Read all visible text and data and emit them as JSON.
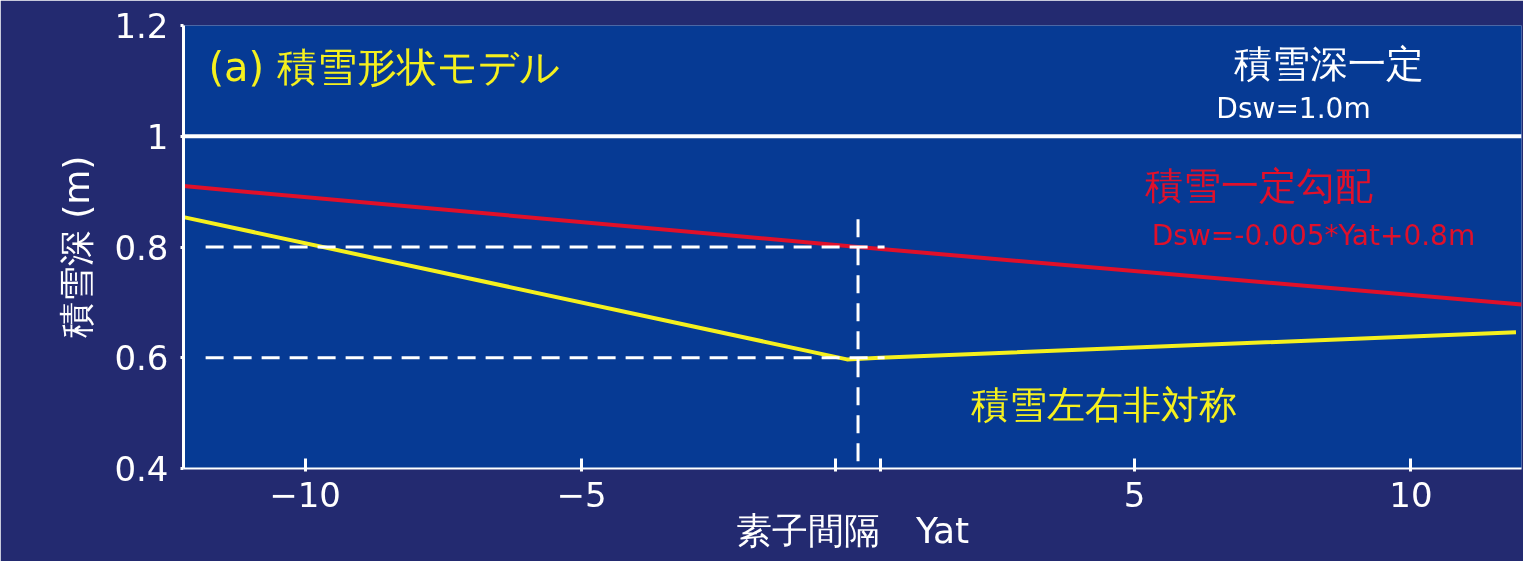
{
  "chart_data": {
    "type": "line",
    "title": "(a)  積雪形状モデル",
    "xlabel": "素子間隔　Yat",
    "ylabel": "積雪深 (m)",
    "xlim": [
      -12.2,
      12.0
    ],
    "xticks": [
      -10,
      -5,
      {
        "value": -0.4,
        "label": null
      },
      {
        "value": 0.4,
        "label": null
      },
      5,
      10
    ],
    "ylim": [
      0.4,
      1.2
    ],
    "yticks": [
      0.4,
      0.6,
      0.8,
      1.0,
      1.2
    ],
    "grid": false,
    "line_style": "solid",
    "series": [
      {
        "color": "#e0102a",
        "x": [
          -12.2,
          0,
          12.0
        ],
        "values": [
          0.91,
          0.8,
          0.696
        ]
      },
      {
        "color": "#f5f01e",
        "x": [
          -12.2,
          -0.2,
          0.4,
          11.9
        ],
        "values": [
          0.854,
          0.597,
          0.6,
          0.646
        ]
      },
      {
        "color": "#ffffff",
        "line_style": "dashed",
        "x": [
          -11.8,
          0.48
        ],
        "values": [
          0.8,
          0.8
        ]
      },
      {
        "color": "#ffffff",
        "line_style": "dashed",
        "x": [
          -11.8,
          0.48
        ],
        "values": [
          0.6,
          0.6
        ]
      },
      {
        "color": "#ffffff",
        "line_style": "dashed",
        "x": [
          0,
          0
        ],
        "values": [
          0.85,
          0.4
        ]
      }
    ],
    "ref_lines": [
      {
        "axis": "y",
        "value": 1.0,
        "color": "#ffffff"
      }
    ],
    "annotations": [
      "積雪深一定",
      "Dsw=1.0m",
      "積雪一定勾配",
      "Dsw=-0.005*Yat+0.8m",
      "積雪左右非対称"
    ]
  }
}
